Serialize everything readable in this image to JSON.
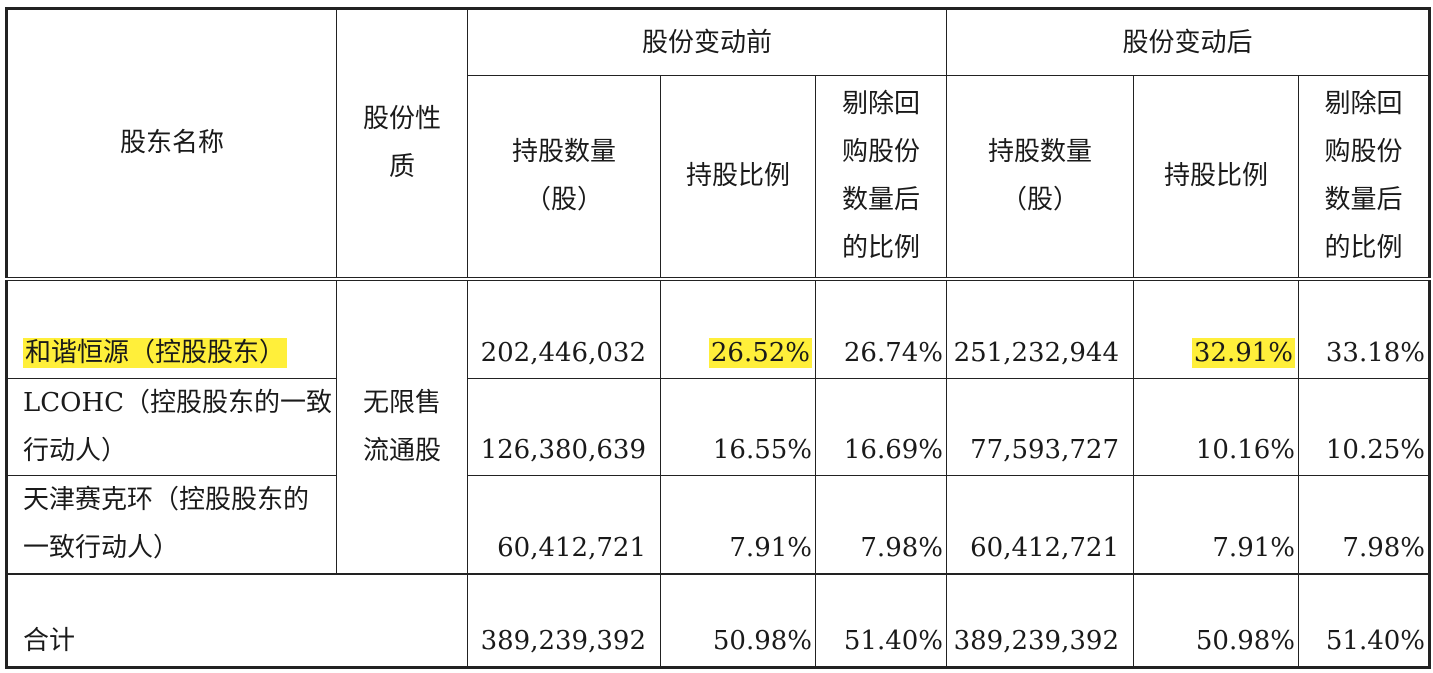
{
  "header": {
    "col_name": "股东名称",
    "col_nature_line1": "股份性",
    "col_nature_line2": "质",
    "group_before": "股份变动前",
    "group_after": "股份变动后",
    "qty_line1": "持股数量",
    "qty_line2": "（股）",
    "ratio": "持股比例",
    "excl_line1": "剔除回",
    "excl_line2": "购股份",
    "excl_line3": "数量后",
    "excl_line4": "的比例"
  },
  "nature_merged": {
    "line1": "无限售",
    "line2": "流通股"
  },
  "rows": [
    {
      "name": "和谐恒源（控股股东）",
      "before_qty": "202,446,032",
      "before_ratio": "26.52%",
      "before_excl": "26.74%",
      "after_qty": "251,232,944",
      "after_ratio": "32.91%",
      "after_excl": "33.18%"
    },
    {
      "name_line1": "LCOHC（控股股东的一致",
      "name_line2": "行动人）",
      "before_qty": "126,380,639",
      "before_ratio": "16.55%",
      "before_excl": "16.69%",
      "after_qty": "77,593,727",
      "after_ratio": "10.16%",
      "after_excl": "10.25%"
    },
    {
      "name_line1": "天津赛克环（控股股东的",
      "name_line2": "一致行动人）",
      "before_qty": "60,412,721",
      "before_ratio": "7.91%",
      "before_excl": "7.98%",
      "after_qty": "60,412,721",
      "after_ratio": "7.91%",
      "after_excl": "7.98%"
    }
  ],
  "total": {
    "label": "合计",
    "before_qty": "389,239,392",
    "before_ratio": "50.98%",
    "before_excl": "51.40%",
    "after_qty": "389,239,392",
    "after_ratio": "50.98%",
    "after_excl": "51.40%"
  },
  "highlight_color": "#ffef3a"
}
